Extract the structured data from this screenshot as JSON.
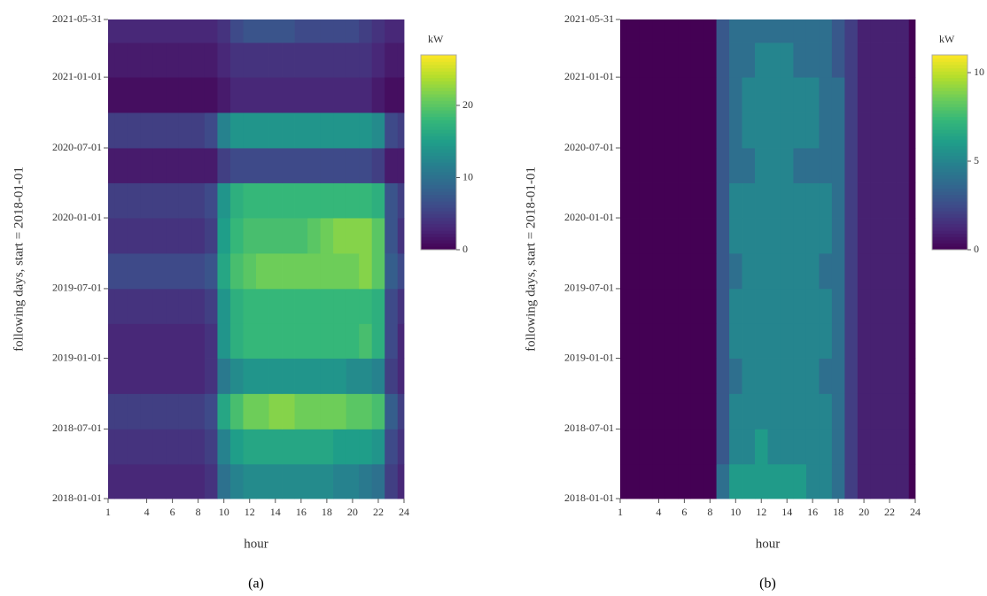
{
  "chart_data": [
    {
      "type": "heatmap",
      "caption": "(a)",
      "x_label": "hour",
      "y_label": "following days, start = 2018-01-01",
      "colormap": "viridis",
      "x": [
        1,
        2,
        3,
        4,
        5,
        6,
        7,
        8,
        9,
        10,
        11,
        12,
        13,
        14,
        15,
        16,
        17,
        18,
        19,
        20,
        21,
        22,
        23,
        24
      ],
      "y": [
        "2018-01-01",
        "2018-04-01",
        "2018-07-01",
        "2018-10-01",
        "2019-01-01",
        "2019-04-01",
        "2019-07-01",
        "2019-10-01",
        "2020-01-01",
        "2020-04-01",
        "2020-07-01",
        "2020-10-01",
        "2021-01-01",
        "2021-04-01"
      ],
      "values": [
        [
          3,
          3,
          3,
          3,
          3,
          3,
          3,
          3,
          4,
          10,
          12,
          13,
          13,
          13,
          13,
          13,
          13,
          13,
          12,
          12,
          11,
          10,
          5,
          3
        ],
        [
          4,
          4,
          4,
          4,
          4,
          4,
          4,
          4,
          5,
          12,
          15,
          16,
          16,
          16,
          16,
          16,
          16,
          16,
          15,
          15,
          15,
          14,
          6,
          4
        ],
        [
          5,
          5,
          5,
          5,
          5,
          5,
          5,
          5,
          6,
          16,
          19,
          21,
          21,
          22,
          22,
          21,
          21,
          21,
          21,
          20,
          20,
          19,
          8,
          5
        ],
        [
          3,
          3,
          3,
          3,
          3,
          3,
          3,
          3,
          4,
          11,
          13,
          14,
          14,
          14,
          14,
          14,
          14,
          14,
          14,
          13,
          13,
          12,
          5,
          3
        ],
        [
          3,
          3,
          3,
          3,
          3,
          3,
          3,
          3,
          4,
          14,
          17,
          18,
          18,
          18,
          18,
          18,
          18,
          18,
          18,
          18,
          19,
          17,
          6,
          3
        ],
        [
          4,
          4,
          4,
          4,
          4,
          4,
          4,
          4,
          5,
          14,
          17,
          18,
          18,
          18,
          18,
          18,
          18,
          18,
          18,
          18,
          18,
          17,
          6,
          4
        ],
        [
          6,
          6,
          6,
          6,
          6,
          6,
          6,
          6,
          7,
          16,
          19,
          20,
          21,
          21,
          21,
          21,
          21,
          21,
          21,
          21,
          22,
          20,
          8,
          6
        ],
        [
          4,
          4,
          4,
          4,
          4,
          4,
          4,
          4,
          5,
          15,
          18,
          19,
          19,
          19,
          19,
          19,
          20,
          21,
          22,
          22,
          22,
          20,
          7,
          4
        ],
        [
          5,
          5,
          5,
          5,
          5,
          5,
          5,
          5,
          6,
          14,
          17,
          18,
          18,
          18,
          18,
          18,
          18,
          18,
          18,
          18,
          18,
          17,
          7,
          5
        ],
        [
          2,
          2,
          2,
          2,
          2,
          2,
          2,
          2,
          2,
          5,
          6,
          6,
          6,
          6,
          6,
          6,
          6,
          6,
          6,
          6,
          6,
          5,
          2,
          2
        ],
        [
          5,
          5,
          5,
          5,
          5,
          5,
          5,
          5,
          6,
          12,
          14,
          14,
          14,
          14,
          14,
          14,
          14,
          14,
          14,
          14,
          14,
          13,
          6,
          5
        ],
        [
          1,
          1,
          1,
          1,
          1,
          1,
          1,
          1,
          1,
          2,
          3,
          3,
          3,
          3,
          3,
          3,
          3,
          3,
          3,
          3,
          3,
          2,
          1,
          1
        ],
        [
          2,
          2,
          2,
          2,
          2,
          2,
          2,
          2,
          2,
          3,
          4,
          4,
          4,
          4,
          4,
          4,
          4,
          4,
          4,
          4,
          4,
          3,
          2,
          2
        ],
        [
          3,
          3,
          3,
          3,
          3,
          3,
          3,
          3,
          3,
          4,
          6,
          7,
          7,
          7,
          7,
          6,
          6,
          6,
          6,
          6,
          5,
          4,
          3,
          3
        ]
      ],
      "xlim": [
        1,
        24
      ],
      "xticks": [
        1,
        4,
        6,
        8,
        10,
        12,
        14,
        16,
        18,
        20,
        22,
        24
      ],
      "ylim": [
        "2018-01-01",
        "2021-05-31"
      ],
      "yticks": [
        "2018-01-01",
        "2018-07-01",
        "2019-01-01",
        "2019-07-01",
        "2020-01-01",
        "2020-07-01",
        "2021-01-01",
        "2021-05-31"
      ],
      "colorbar": {
        "label": "kW",
        "lim": [
          0,
          27
        ],
        "ticks": [
          0,
          10,
          20
        ]
      }
    },
    {
      "type": "heatmap",
      "caption": "(b)",
      "x_label": "hour",
      "y_label": "following days, start = 2018-01-01",
      "colormap": "viridis",
      "x": [
        1,
        2,
        3,
        4,
        5,
        6,
        7,
        8,
        9,
        10,
        11,
        12,
        13,
        14,
        15,
        16,
        17,
        18,
        19,
        20,
        21,
        22,
        23,
        24
      ],
      "y": [
        "2018-01-01",
        "2018-04-01",
        "2018-07-01",
        "2018-10-01",
        "2019-01-01",
        "2019-04-01",
        "2019-07-01",
        "2019-10-01",
        "2020-01-01",
        "2020-04-01",
        "2020-07-01",
        "2020-10-01",
        "2021-01-01",
        "2021-04-01"
      ],
      "values": [
        [
          0,
          0,
          0,
          0,
          0,
          0,
          0,
          0,
          4,
          6,
          6,
          6,
          6,
          6,
          6,
          5,
          5,
          4,
          2,
          1,
          1,
          1,
          1,
          0
        ],
        [
          0,
          0,
          0,
          0,
          0,
          0,
          0,
          0,
          3,
          5,
          5,
          6,
          5,
          5,
          5,
          5,
          5,
          4,
          2,
          1,
          1,
          1,
          1,
          0
        ],
        [
          0,
          0,
          0,
          0,
          0,
          0,
          0,
          0,
          3,
          5,
          5,
          5,
          5,
          5,
          5,
          5,
          5,
          4,
          2,
          1,
          1,
          1,
          1,
          0
        ],
        [
          0,
          0,
          0,
          0,
          0,
          0,
          0,
          0,
          3,
          4,
          5,
          5,
          5,
          5,
          5,
          5,
          4,
          4,
          2,
          1,
          1,
          1,
          1,
          0
        ],
        [
          0,
          0,
          0,
          0,
          0,
          0,
          0,
          0,
          3,
          5,
          5,
          5,
          5,
          5,
          5,
          5,
          5,
          4,
          2,
          1,
          1,
          1,
          1,
          0
        ],
        [
          0,
          0,
          0,
          0,
          0,
          0,
          0,
          0,
          3,
          5,
          5,
          5,
          5,
          5,
          5,
          5,
          5,
          4,
          2,
          1,
          1,
          1,
          1,
          0
        ],
        [
          0,
          0,
          0,
          0,
          0,
          0,
          0,
          0,
          3,
          4,
          5,
          5,
          5,
          5,
          5,
          5,
          4,
          4,
          2,
          1,
          1,
          1,
          1,
          0
        ],
        [
          0,
          0,
          0,
          0,
          0,
          0,
          0,
          0,
          3,
          5,
          5,
          5,
          5,
          5,
          5,
          5,
          5,
          4,
          2,
          1,
          1,
          1,
          1,
          0
        ],
        [
          0,
          0,
          0,
          0,
          0,
          0,
          0,
          0,
          3,
          5,
          5,
          5,
          5,
          5,
          5,
          5,
          5,
          4,
          2,
          1,
          1,
          1,
          1,
          0
        ],
        [
          0,
          0,
          0,
          0,
          0,
          0,
          0,
          0,
          3,
          4,
          4,
          5,
          5,
          5,
          4,
          4,
          4,
          4,
          2,
          1,
          1,
          1,
          1,
          0
        ],
        [
          0,
          0,
          0,
          0,
          0,
          0,
          0,
          0,
          3,
          4,
          5,
          5,
          5,
          5,
          5,
          5,
          4,
          4,
          2,
          1,
          1,
          1,
          1,
          0
        ],
        [
          0,
          0,
          0,
          0,
          0,
          0,
          0,
          0,
          3,
          4,
          5,
          5,
          5,
          5,
          5,
          5,
          4,
          4,
          2,
          1,
          1,
          1,
          1,
          0
        ],
        [
          0,
          0,
          0,
          0,
          0,
          0,
          0,
          0,
          3,
          4,
          4,
          5,
          5,
          5,
          4,
          4,
          4,
          3,
          2,
          1,
          1,
          1,
          1,
          0
        ],
        [
          0,
          0,
          0,
          0,
          0,
          0,
          0,
          0,
          3,
          4,
          4,
          4,
          4,
          4,
          4,
          4,
          4,
          3,
          2,
          1,
          1,
          1,
          1,
          0
        ]
      ],
      "xlim": [
        1,
        24
      ],
      "xticks": [
        1,
        4,
        6,
        8,
        10,
        12,
        14,
        16,
        18,
        20,
        22,
        24
      ],
      "ylim": [
        "2018-01-01",
        "2021-05-31"
      ],
      "yticks": [
        "2018-01-01",
        "2018-07-01",
        "2019-01-01",
        "2019-07-01",
        "2020-01-01",
        "2020-07-01",
        "2021-01-01",
        "2021-05-31"
      ],
      "colorbar": {
        "label": "kW",
        "lim": [
          0,
          11
        ],
        "ticks": [
          0,
          5,
          10
        ]
      }
    }
  ]
}
